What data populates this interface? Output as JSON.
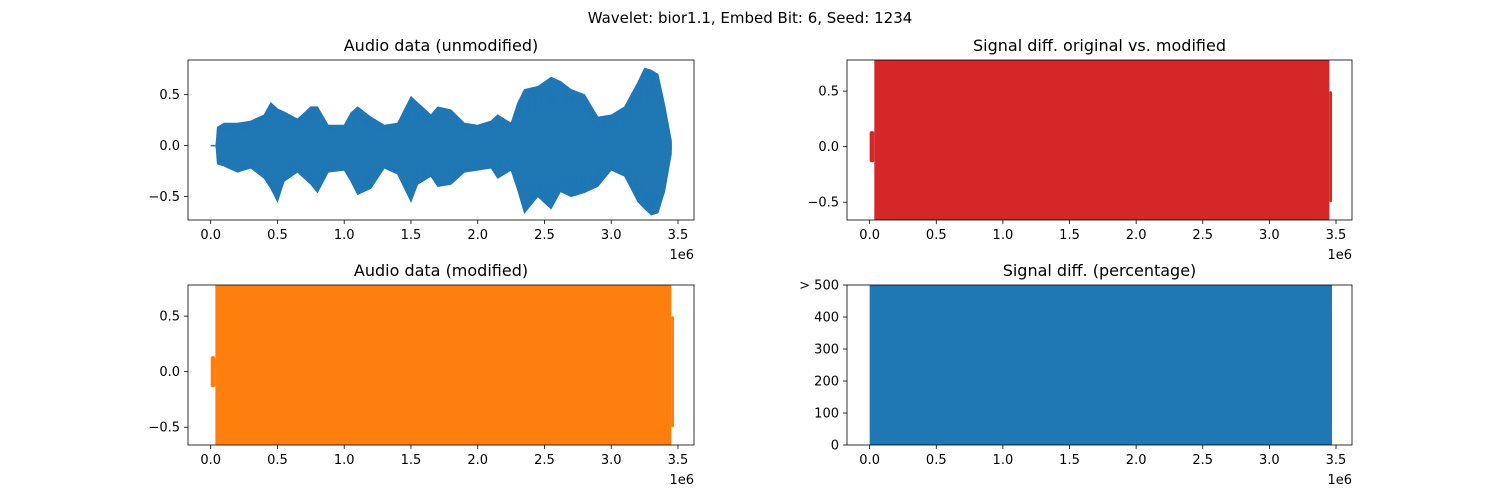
{
  "figure": {
    "suptitle": "Wavelet: bior1.1, Embed Bit: 6, Seed: 1234"
  },
  "chart_data": [
    {
      "id": "unmodified",
      "type": "line",
      "title": "Audio data (unmodified)",
      "xlabel": "",
      "ylabel": "",
      "x_offset_label": "1e6",
      "xlim": [
        -0.17,
        3.62
      ],
      "ylim": [
        -0.73,
        0.84
      ],
      "xticks": [
        0.0,
        0.5,
        1.0,
        1.5,
        2.0,
        2.5,
        3.0,
        3.5
      ],
      "xtick_labels": [
        "0.0",
        "0.5",
        "1.0",
        "1.5",
        "2.0",
        "2.5",
        "3.0",
        "3.5"
      ],
      "yticks": [
        -0.5,
        0.0,
        0.5
      ],
      "ytick_labels": [
        "−0.5",
        "0.0",
        "0.5"
      ],
      "color": "#1f77b4",
      "envelope": [
        {
          "x": 0.0,
          "hi": 0.0,
          "lo": 0.0
        },
        {
          "x": 0.04,
          "hi": 0.0,
          "lo": 0.0
        },
        {
          "x": 0.05,
          "hi": 0.18,
          "lo": -0.18
        },
        {
          "x": 0.1,
          "hi": 0.22,
          "lo": -0.2
        },
        {
          "x": 0.2,
          "hi": 0.22,
          "lo": -0.26
        },
        {
          "x": 0.3,
          "hi": 0.24,
          "lo": -0.22
        },
        {
          "x": 0.4,
          "hi": 0.3,
          "lo": -0.32
        },
        {
          "x": 0.45,
          "hi": 0.42,
          "lo": -0.42
        },
        {
          "x": 0.5,
          "hi": 0.36,
          "lo": -0.55
        },
        {
          "x": 0.55,
          "hi": 0.33,
          "lo": -0.35
        },
        {
          "x": 0.65,
          "hi": 0.26,
          "lo": -0.26
        },
        {
          "x": 0.75,
          "hi": 0.38,
          "lo": -0.38
        },
        {
          "x": 0.8,
          "hi": 0.38,
          "lo": -0.46
        },
        {
          "x": 0.88,
          "hi": 0.2,
          "lo": -0.26
        },
        {
          "x": 1.0,
          "hi": 0.2,
          "lo": -0.24
        },
        {
          "x": 1.05,
          "hi": 0.32,
          "lo": -0.35
        },
        {
          "x": 1.1,
          "hi": 0.38,
          "lo": -0.48
        },
        {
          "x": 1.2,
          "hi": 0.28,
          "lo": -0.42
        },
        {
          "x": 1.3,
          "hi": 0.2,
          "lo": -0.22
        },
        {
          "x": 1.4,
          "hi": 0.22,
          "lo": -0.28
        },
        {
          "x": 1.5,
          "hi": 0.48,
          "lo": -0.55
        },
        {
          "x": 1.55,
          "hi": 0.42,
          "lo": -0.38
        },
        {
          "x": 1.65,
          "hi": 0.3,
          "lo": -0.3
        },
        {
          "x": 1.7,
          "hi": 0.38,
          "lo": -0.4
        },
        {
          "x": 1.8,
          "hi": 0.35,
          "lo": -0.38
        },
        {
          "x": 1.9,
          "hi": 0.22,
          "lo": -0.26
        },
        {
          "x": 2.0,
          "hi": 0.2,
          "lo": -0.24
        },
        {
          "x": 2.1,
          "hi": 0.24,
          "lo": -0.22
        },
        {
          "x": 2.15,
          "hi": 0.3,
          "lo": -0.32
        },
        {
          "x": 2.25,
          "hi": 0.22,
          "lo": -0.24
        },
        {
          "x": 2.3,
          "hi": 0.42,
          "lo": -0.44
        },
        {
          "x": 2.35,
          "hi": 0.55,
          "lo": -0.66
        },
        {
          "x": 2.45,
          "hi": 0.58,
          "lo": -0.5
        },
        {
          "x": 2.55,
          "hi": 0.67,
          "lo": -0.62
        },
        {
          "x": 2.62,
          "hi": 0.63,
          "lo": -0.45
        },
        {
          "x": 2.7,
          "hi": 0.55,
          "lo": -0.5
        },
        {
          "x": 2.8,
          "hi": 0.5,
          "lo": -0.46
        },
        {
          "x": 2.9,
          "hi": 0.28,
          "lo": -0.4
        },
        {
          "x": 3.0,
          "hi": 0.3,
          "lo": -0.24
        },
        {
          "x": 3.1,
          "hi": 0.38,
          "lo": -0.3
        },
        {
          "x": 3.2,
          "hi": 0.62,
          "lo": -0.55
        },
        {
          "x": 3.25,
          "hi": 0.76,
          "lo": -0.62
        },
        {
          "x": 3.3,
          "hi": 0.74,
          "lo": -0.68
        },
        {
          "x": 3.35,
          "hi": 0.7,
          "lo": -0.66
        },
        {
          "x": 3.4,
          "hi": 0.4,
          "lo": -0.45
        },
        {
          "x": 3.45,
          "hi": 0.05,
          "lo": -0.08
        }
      ]
    },
    {
      "id": "diff",
      "type": "area",
      "title": "Signal diff. original vs. modified",
      "xlabel": "",
      "ylabel": "",
      "x_offset_label": "1e6",
      "xlim": [
        -0.17,
        3.62
      ],
      "ylim": [
        -0.66,
        0.78
      ],
      "xticks": [
        0.0,
        0.5,
        1.0,
        1.5,
        2.0,
        2.5,
        3.0,
        3.5
      ],
      "xtick_labels": [
        "0.0",
        "0.5",
        "1.0",
        "1.5",
        "2.0",
        "2.5",
        "3.0",
        "3.5"
      ],
      "yticks": [
        -0.5,
        0.0,
        0.5
      ],
      "ytick_labels": [
        "−0.5",
        "0.0",
        "0.5"
      ],
      "color": "#d62728",
      "bands": [
        {
          "x0": 0.0,
          "x1": 0.035,
          "hi": 0.14,
          "lo": -0.14
        },
        {
          "x0": 0.035,
          "x1": 3.45,
          "hi": 0.78,
          "lo": -0.66
        },
        {
          "x0": 3.45,
          "x1": 3.47,
          "hi": 0.5,
          "lo": -0.5
        }
      ]
    },
    {
      "id": "modified",
      "type": "area",
      "title": "Audio data (modified)",
      "xlabel": "",
      "ylabel": "",
      "x_offset_label": "1e6",
      "xlim": [
        -0.17,
        3.62
      ],
      "ylim": [
        -0.66,
        0.78
      ],
      "xticks": [
        0.0,
        0.5,
        1.0,
        1.5,
        2.0,
        2.5,
        3.0,
        3.5
      ],
      "xtick_labels": [
        "0.0",
        "0.5",
        "1.0",
        "1.5",
        "2.0",
        "2.5",
        "3.0",
        "3.5"
      ],
      "yticks": [
        -0.5,
        0.0,
        0.5
      ],
      "ytick_labels": [
        "−0.5",
        "0.0",
        "0.5"
      ],
      "color": "#ff7f0e",
      "bands": [
        {
          "x0": 0.0,
          "x1": 0.035,
          "hi": 0.14,
          "lo": -0.14
        },
        {
          "x0": 0.035,
          "x1": 3.45,
          "hi": 0.78,
          "lo": -0.66
        },
        {
          "x0": 3.45,
          "x1": 3.47,
          "hi": 0.5,
          "lo": -0.5
        }
      ]
    },
    {
      "id": "percentage",
      "type": "area",
      "title": "Signal diff. (percentage)",
      "xlabel": "",
      "ylabel": "",
      "x_offset_label": "1e6",
      "xlim": [
        -0.17,
        3.62
      ],
      "ylim": [
        0,
        500
      ],
      "xticks": [
        0.0,
        0.5,
        1.0,
        1.5,
        2.0,
        2.5,
        3.0,
        3.5
      ],
      "xtick_labels": [
        "0.0",
        "0.5",
        "1.0",
        "1.5",
        "2.0",
        "2.5",
        "3.0",
        "3.5"
      ],
      "yticks": [
        0,
        100,
        200,
        300,
        400,
        500
      ],
      "ytick_labels": [
        "0",
        "100",
        "200",
        "300",
        "400",
        "> 500"
      ],
      "color": "#1f77b4",
      "bands": [
        {
          "x0": 0.0,
          "x1": 3.47,
          "hi": 500,
          "lo": 0
        }
      ]
    }
  ]
}
